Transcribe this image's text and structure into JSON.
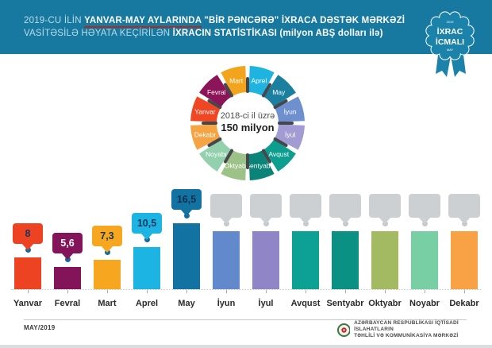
{
  "header": {
    "line1_a": "2019-CU İLİN ",
    "line1_b": "YANVAR-MAY AYLARINDA",
    "line1_c": " \"BİR PƏNCƏRƏ\" İXRACA DƏSTƏK MƏRKƏZİ",
    "line2_a": "VASİTƏSİLƏ HƏYATA KEÇİRİLƏN ",
    "line2_b": "İXRACIN STATİSTİKASI (milyon ABŞ dolları ilə)",
    "background": "#1779a0",
    "underline_color": "#b5271d"
  },
  "badge": {
    "small_top": "2019",
    "line1": "İXRAC",
    "line2": "İCMALI",
    "small_bottom": "MAY",
    "color": "#1b82aa"
  },
  "donut": {
    "center_line1": "2018-ci il üzrə",
    "center_line2": "150 milyon",
    "tick_color": "#46474b",
    "label_color": "#ffffff"
  },
  "chart_data": {
    "type": "bar",
    "title": "2019-cu ilin Yanvar-May aylarında \"Bir Pəncərə\" İxraca Dəstək Mərkəzi vasitəsilə həyata keçirilən ixracın statistikası (milyon ABŞ dolları ilə)",
    "categories": [
      "Yanvar",
      "Fevral",
      "Mart",
      "Aprel",
      "May",
      "İyun",
      "İyul",
      "Avqust",
      "Sentyabr",
      "Oktyabr",
      "Noyabr",
      "Dekabr"
    ],
    "values": [
      8,
      5.6,
      7.3,
      10.5,
      16.5,
      null,
      null,
      null,
      null,
      null,
      null,
      null
    ],
    "annual_reference": {
      "year": "2018",
      "total": "150 milyon"
    },
    "ylim": [
      0,
      18
    ],
    "active_dot_color": "#17699b",
    "placeholder_bubble_color": "#cdd0d3",
    "placeholder_dot_color": "#c6c9cb",
    "months": [
      {
        "name": "Yanvar",
        "label": "8",
        "value": 8,
        "bar_color": "#ee4323",
        "donut_color": "#ef4723",
        "bubble_text": "#12375c"
      },
      {
        "name": "Fevral",
        "label": "5,6",
        "value": 5.6,
        "bar_color": "#83145a",
        "donut_color": "#8c1458",
        "bubble_text": "#ffffff"
      },
      {
        "name": "Mart",
        "label": "7,3",
        "value": 7.3,
        "bar_color": "#f7a71f",
        "donut_color": "#f2a51c",
        "bubble_text": "#12375c"
      },
      {
        "name": "Aprel",
        "label": "10,5",
        "value": 10.5,
        "bar_color": "#1cb4e3",
        "donut_color": "#1fb3e0",
        "bubble_text": "#12375c"
      },
      {
        "name": "May",
        "label": "16,5",
        "value": 16.5,
        "bar_color": "#1273a3",
        "donut_color": "#1b7f9f",
        "bubble_text": "#0d2f4e"
      },
      {
        "name": "İyun",
        "label": "",
        "value": null,
        "bar_color": "#6189cb",
        "donut_color": "#6f90cf",
        "bubble_text": ""
      },
      {
        "name": "İyul",
        "label": "",
        "value": null,
        "bar_color": "#8f85c7",
        "donut_color": "#a29cd4",
        "bubble_text": ""
      },
      {
        "name": "Avqust",
        "label": "",
        "value": null,
        "bar_color": "#0ca194",
        "donut_color": "#0d9e90",
        "bubble_text": ""
      },
      {
        "name": "Sentyabr",
        "label": "",
        "value": null,
        "bar_color": "#0a9184",
        "donut_color": "#0c8378",
        "bubble_text": ""
      },
      {
        "name": "Oktyabr",
        "label": "",
        "value": null,
        "bar_color": "#a4ba62",
        "donut_color": "#9dc287",
        "bubble_text": ""
      },
      {
        "name": "Noyabr",
        "label": "",
        "value": null,
        "bar_color": "#78cfa3",
        "donut_color": "#93d0ae",
        "bubble_text": ""
      },
      {
        "name": "Dekabr",
        "label": "",
        "value": null,
        "bar_color": "#f9a145",
        "donut_color": "#f5a444",
        "bubble_text": ""
      }
    ]
  },
  "footer": {
    "date": "MAY/2019",
    "org_line1": "AZƏRBAYCAN RESPUBLİKASI İQTİSADİ İSLAHATLARIN",
    "org_line2": "TƏHLİLİ VƏ KOMMUNİKASİYA MƏRKƏZİ"
  }
}
